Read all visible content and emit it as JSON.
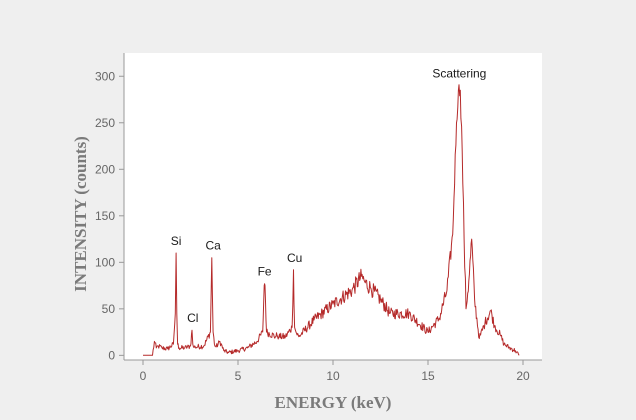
{
  "chart_data": {
    "type": "line",
    "title": "",
    "xlabel": "ENERGY (keV)",
    "ylabel": "INTENSITY (counts)",
    "xlim": [
      -1,
      21
    ],
    "ylim": [
      -5,
      325
    ],
    "xticks": [
      0,
      5,
      10,
      15,
      20
    ],
    "yticks": [
      0,
      50,
      100,
      150,
      200,
      250,
      300
    ],
    "grid": false,
    "colors": {
      "line": "#b52a2a",
      "background": "#efefef",
      "plot_area": "#ffffff",
      "axis": "#999999"
    },
    "series": [
      {
        "x": [
          0,
          0.5,
          0.6,
          0.7,
          0.8,
          1,
          1.3,
          1.6,
          1.7,
          1.74,
          1.78,
          1.82,
          1.9,
          2.2,
          2.5,
          2.58,
          2.62,
          2.66,
          2.75,
          3.2,
          3.55,
          3.62,
          3.69,
          3.76,
          3.85,
          4.05,
          4.25,
          4.5,
          5,
          5.5,
          6,
          6.3,
          6.38,
          6.4,
          6.42,
          6.5,
          7,
          7.05,
          7.15,
          7.5,
          7.85,
          7.92,
          7.98,
          8.05,
          8.2,
          9,
          10,
          11,
          11.5,
          11.7,
          12,
          12.5,
          13,
          14,
          15,
          15.6,
          16,
          16.3,
          16.5,
          16.6,
          16.7,
          16.8,
          16.9,
          17,
          17.15,
          17.3,
          17.45,
          17.7,
          18,
          18.3,
          18.5,
          18.8,
          19,
          19.3,
          19.6,
          19.8
        ],
        "y": [
          0,
          0,
          15,
          8,
          10,
          8,
          7,
          12,
          45,
          110,
          45,
          12,
          8,
          8,
          10,
          27,
          12,
          9,
          9,
          10,
          25,
          105,
          25,
          12,
          9,
          15,
          5,
          3,
          5,
          8,
          15,
          25,
          75,
          77,
          75,
          25,
          20,
          22,
          20,
          20,
          30,
          92,
          30,
          25,
          20,
          38,
          55,
          70,
          85,
          78,
          72,
          60,
          45,
          45,
          25,
          40,
          70,
          130,
          250,
          285,
          285,
          220,
          125,
          50,
          80,
          125,
          60,
          18,
          35,
          48,
          32,
          22,
          12,
          8,
          5,
          0
        ]
      }
    ],
    "annotations": [
      {
        "text": "Si",
        "x": 1.74,
        "y": 110
      },
      {
        "text": "Cl",
        "x": 2.62,
        "y": 27
      },
      {
        "text": "Ca",
        "x": 3.69,
        "y": 105
      },
      {
        "text": "Fe",
        "x": 6.4,
        "y": 77
      },
      {
        "text": "Cu",
        "x": 7.98,
        "y": 92
      },
      {
        "text": "Scattering",
        "x": 16.65,
        "y": 290
      }
    ]
  }
}
